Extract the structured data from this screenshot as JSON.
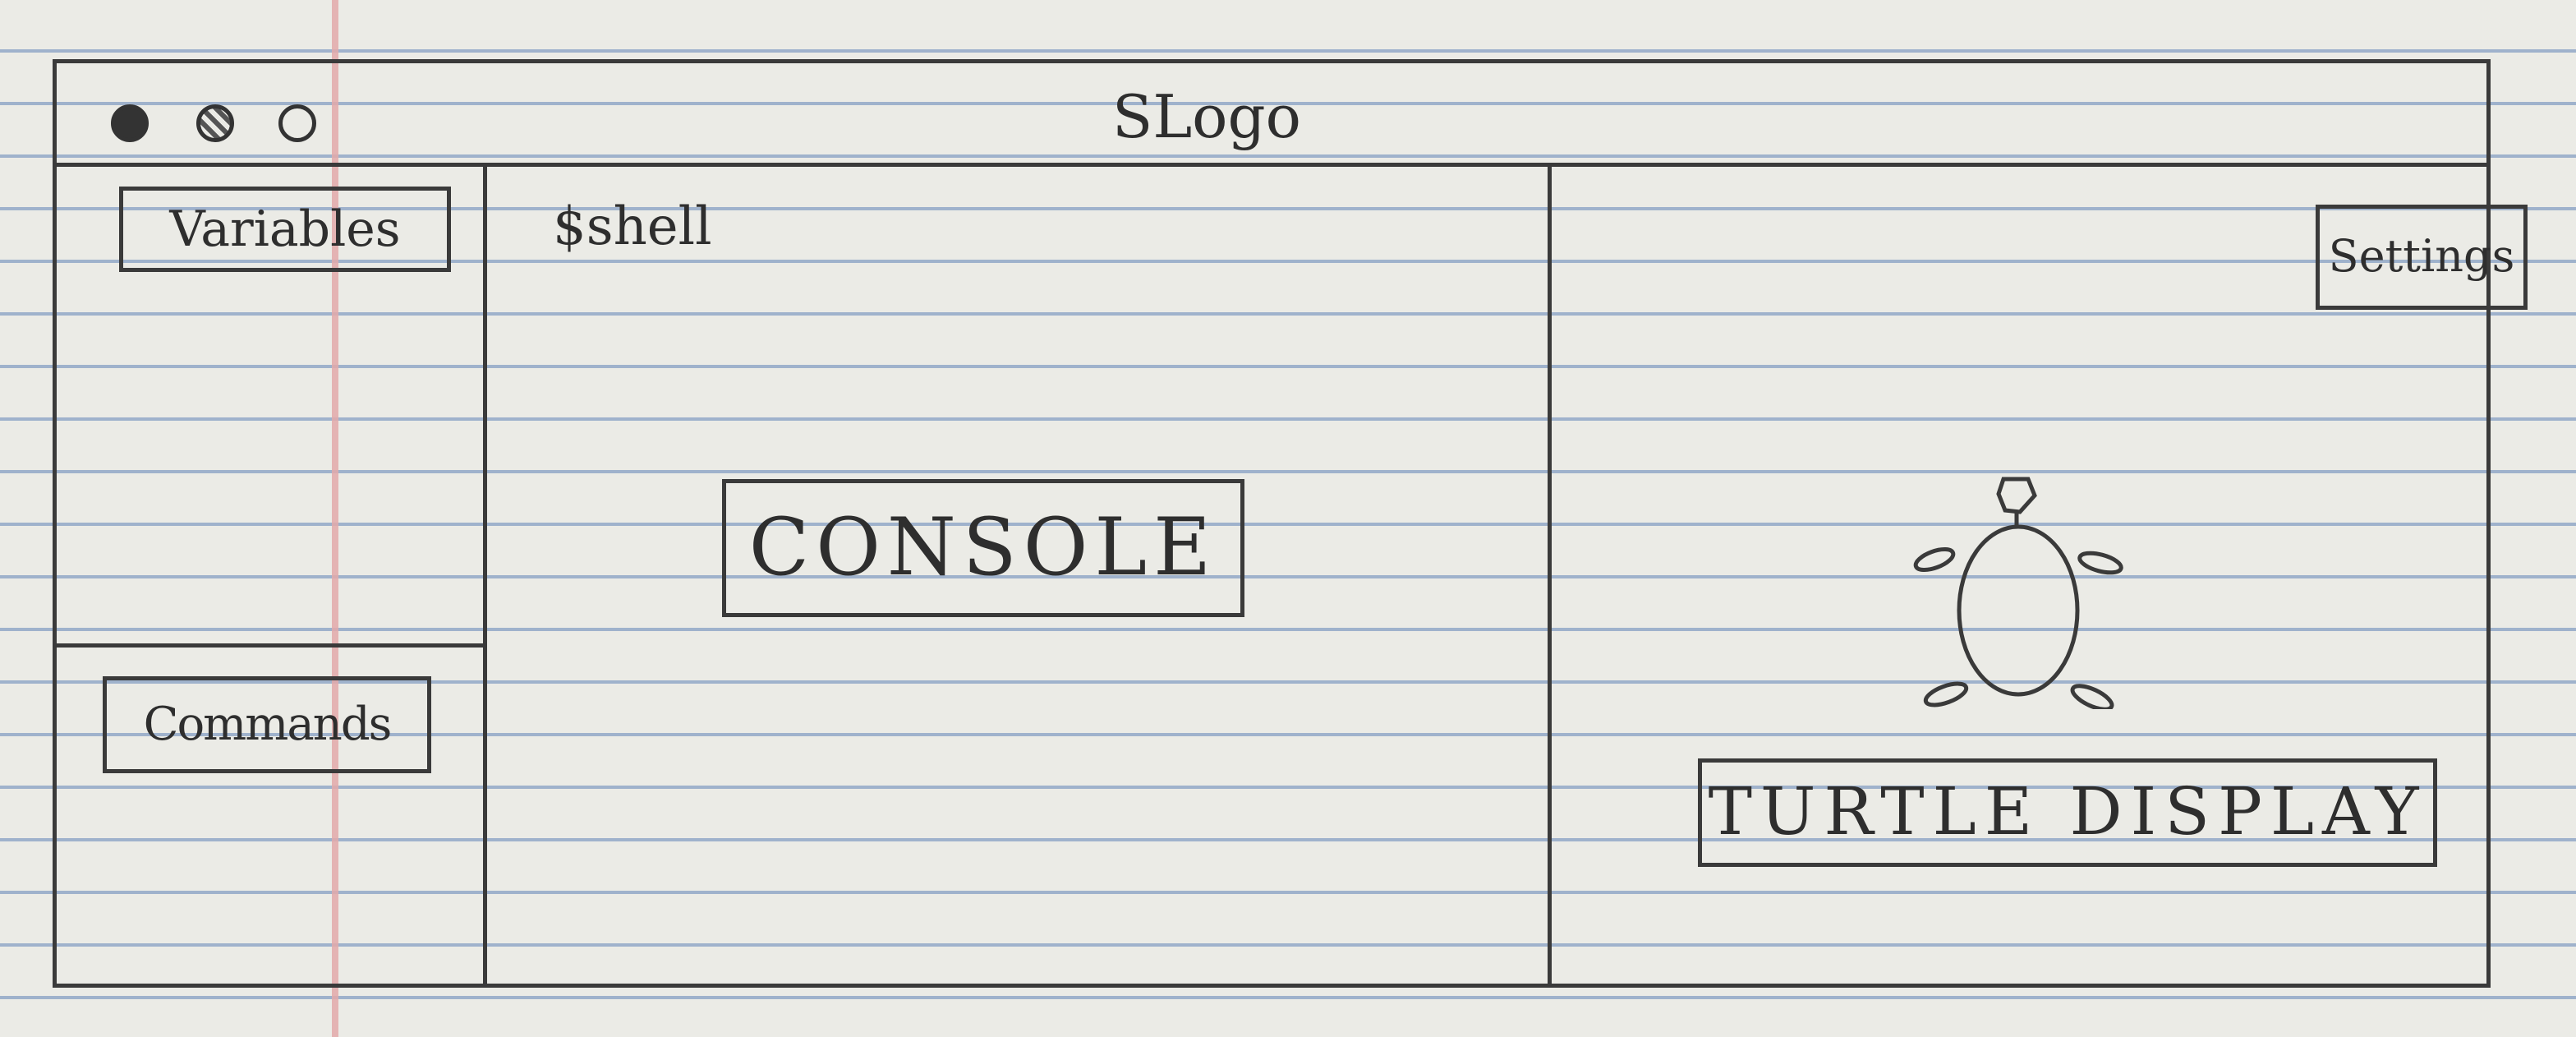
{
  "window": {
    "title": "SLogo",
    "controls": [
      "close-icon",
      "minimize-icon",
      "maximize-icon"
    ]
  },
  "sidebar": {
    "variables_label": "Variables",
    "commands_label": "Commands"
  },
  "console": {
    "prompt": "$shell",
    "label": "CONSOLE"
  },
  "turtle_display": {
    "settings_label": "Settings",
    "label": "TURTLE DISPLAY",
    "icon": "turtle-icon"
  }
}
